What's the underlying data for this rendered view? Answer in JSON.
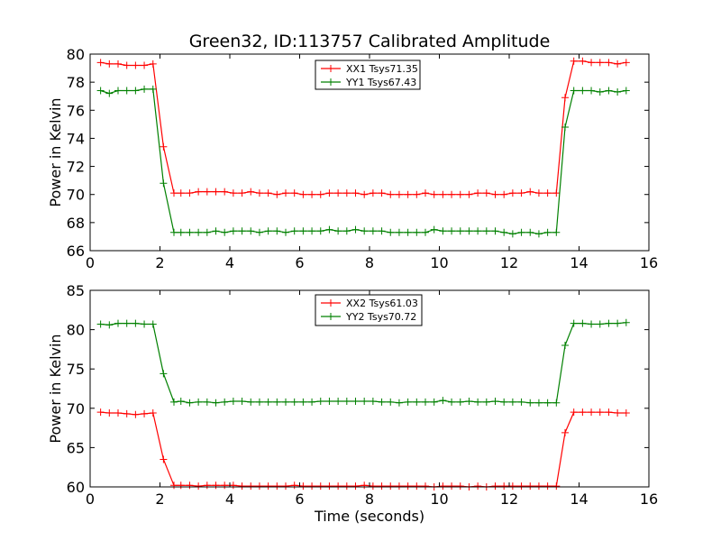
{
  "chart_data": [
    {
      "type": "line",
      "title": "Green32, ID:113757 Calibrated Amplitude",
      "xlabel": "",
      "ylabel": "Power in Kelvin",
      "xlim": [
        0,
        16
      ],
      "ylim": [
        66,
        80
      ],
      "xticks": [
        0,
        2,
        4,
        6,
        8,
        10,
        12,
        14,
        16
      ],
      "yticks": [
        66,
        68,
        70,
        72,
        74,
        76,
        78,
        80
      ],
      "legend_position": "top-center",
      "x": [
        0.3,
        0.55,
        0.8,
        1.05,
        1.3,
        1.55,
        1.8,
        2.1,
        2.4,
        2.6,
        2.85,
        3.1,
        3.35,
        3.6,
        3.85,
        4.1,
        4.35,
        4.6,
        4.85,
        5.1,
        5.35,
        5.6,
        5.85,
        6.1,
        6.35,
        6.6,
        6.85,
        7.1,
        7.35,
        7.6,
        7.85,
        8.1,
        8.35,
        8.6,
        8.85,
        9.1,
        9.35,
        9.6,
        9.85,
        10.1,
        10.35,
        10.6,
        10.85,
        11.1,
        11.35,
        11.6,
        11.85,
        12.1,
        12.35,
        12.6,
        12.85,
        13.1,
        13.35,
        13.6,
        13.85,
        14.1,
        14.35,
        14.6,
        14.85,
        15.1,
        15.35
      ],
      "series": [
        {
          "name": "XX1 Tsys71.35",
          "color": "#ff0000",
          "values": [
            79.4,
            79.3,
            79.3,
            79.2,
            79.2,
            79.2,
            79.3,
            73.4,
            70.1,
            70.1,
            70.1,
            70.2,
            70.2,
            70.2,
            70.2,
            70.1,
            70.1,
            70.2,
            70.1,
            70.1,
            70.0,
            70.1,
            70.1,
            70.0,
            70.0,
            70.0,
            70.1,
            70.1,
            70.1,
            70.1,
            70.0,
            70.1,
            70.1,
            70.0,
            70.0,
            70.0,
            70.0,
            70.1,
            70.0,
            70.0,
            70.0,
            70.0,
            70.0,
            70.1,
            70.1,
            70.0,
            70.0,
            70.1,
            70.1,
            70.2,
            70.1,
            70.1,
            70.1,
            76.9,
            79.5,
            79.5,
            79.4,
            79.4,
            79.4,
            79.3,
            79.4
          ]
        },
        {
          "name": "YY1 Tsys67.43",
          "color": "#008000",
          "values": [
            77.4,
            77.2,
            77.4,
            77.4,
            77.4,
            77.5,
            77.5,
            70.8,
            67.3,
            67.3,
            67.3,
            67.3,
            67.3,
            67.4,
            67.3,
            67.4,
            67.4,
            67.4,
            67.3,
            67.4,
            67.4,
            67.3,
            67.4,
            67.4,
            67.4,
            67.4,
            67.5,
            67.4,
            67.4,
            67.5,
            67.4,
            67.4,
            67.4,
            67.3,
            67.3,
            67.3,
            67.3,
            67.3,
            67.5,
            67.4,
            67.4,
            67.4,
            67.4,
            67.4,
            67.4,
            67.4,
            67.3,
            67.2,
            67.3,
            67.3,
            67.2,
            67.3,
            67.3,
            74.8,
            77.4,
            77.4,
            77.4,
            77.3,
            77.4,
            77.3,
            77.4
          ]
        }
      ]
    },
    {
      "type": "line",
      "title": "",
      "xlabel": "Time (seconds)",
      "ylabel": "Power in Kelvin",
      "xlim": [
        0,
        16
      ],
      "ylim": [
        60,
        85
      ],
      "xticks": [
        0,
        2,
        4,
        6,
        8,
        10,
        12,
        14,
        16
      ],
      "yticks": [
        60,
        65,
        70,
        75,
        80,
        85
      ],
      "legend_position": "top-center",
      "x": [
        0.3,
        0.55,
        0.8,
        1.05,
        1.3,
        1.55,
        1.8,
        2.1,
        2.4,
        2.6,
        2.85,
        3.1,
        3.35,
        3.6,
        3.85,
        4.1,
        4.35,
        4.6,
        4.85,
        5.1,
        5.35,
        5.6,
        5.85,
        6.1,
        6.35,
        6.6,
        6.85,
        7.1,
        7.35,
        7.6,
        7.85,
        8.1,
        8.35,
        8.6,
        8.85,
        9.1,
        9.35,
        9.6,
        9.85,
        10.1,
        10.35,
        10.6,
        10.85,
        11.1,
        11.35,
        11.6,
        11.85,
        12.1,
        12.35,
        12.6,
        12.85,
        13.1,
        13.35,
        13.6,
        13.85,
        14.1,
        14.35,
        14.6,
        14.85,
        15.1,
        15.35
      ],
      "series": [
        {
          "name": "XX2 Tsys61.03",
          "color": "#ff0000",
          "values": [
            69.5,
            69.4,
            69.4,
            69.3,
            69.2,
            69.3,
            69.4,
            63.5,
            60.2,
            60.2,
            60.2,
            60.1,
            60.2,
            60.2,
            60.2,
            60.2,
            60.1,
            60.1,
            60.1,
            60.1,
            60.1,
            60.1,
            60.2,
            60.1,
            60.1,
            60.1,
            60.1,
            60.1,
            60.1,
            60.1,
            60.2,
            60.1,
            60.1,
            60.1,
            60.1,
            60.1,
            60.1,
            60.1,
            60.0,
            60.1,
            60.1,
            60.1,
            60.0,
            60.1,
            60.0,
            60.1,
            60.1,
            60.1,
            60.1,
            60.1,
            60.1,
            60.1,
            60.1,
            66.9,
            69.5,
            69.5,
            69.5,
            69.5,
            69.5,
            69.4,
            69.4
          ]
        },
        {
          "name": "YY2 Tsys70.72",
          "color": "#008000",
          "values": [
            80.7,
            80.6,
            80.8,
            80.8,
            80.8,
            80.7,
            80.7,
            74.4,
            70.8,
            70.9,
            70.7,
            70.8,
            70.8,
            70.7,
            70.8,
            70.9,
            70.9,
            70.8,
            70.8,
            70.8,
            70.8,
            70.8,
            70.8,
            70.8,
            70.8,
            70.9,
            70.9,
            70.9,
            70.9,
            70.9,
            70.9,
            70.9,
            70.8,
            70.8,
            70.7,
            70.8,
            70.8,
            70.8,
            70.8,
            71.0,
            70.8,
            70.8,
            70.9,
            70.8,
            70.8,
            70.9,
            70.8,
            70.8,
            70.8,
            70.7,
            70.7,
            70.7,
            70.7,
            78.0,
            80.8,
            80.8,
            80.7,
            80.7,
            80.8,
            80.8,
            80.9
          ]
        }
      ]
    }
  ]
}
